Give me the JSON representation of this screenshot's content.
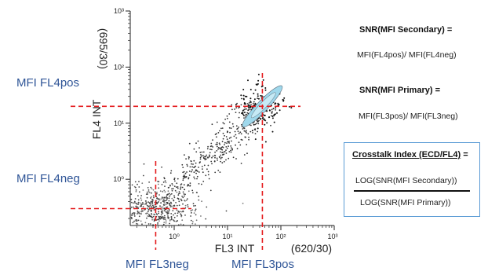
{
  "chart_data": {
    "type": "scatter",
    "xlabel": "FL3 INT",
    "ylabel": "FL4 INT",
    "x_filter": "(620/30)",
    "y_filter": "(695/30)",
    "xscale": "log",
    "yscale": "log",
    "xlim": [
      0.15,
      1000
    ],
    "ylim": [
      0.15,
      1000
    ],
    "x_ticks": [
      {
        "value": 1,
        "label": "10⁰"
      },
      {
        "value": 10,
        "label": "10¹"
      },
      {
        "value": 100,
        "label": "10²"
      },
      {
        "value": 1000,
        "label": "10³"
      }
    ],
    "y_ticks": [
      {
        "value": 1,
        "label": "10⁰"
      },
      {
        "value": 10,
        "label": "10¹"
      },
      {
        "value": 100,
        "label": "10²"
      },
      {
        "value": 1000,
        "label": "10³"
      }
    ],
    "grid": false,
    "populations": [
      {
        "description": "negative cluster",
        "center_x": 0.45,
        "center_y": 0.3
      },
      {
        "description": "positive cluster",
        "center_x": 45,
        "center_y": 20
      }
    ],
    "reference_lines": [
      {
        "axis": "x",
        "value": 0.45,
        "label": "MFI FL3neg"
      },
      {
        "axis": "x",
        "value": 45,
        "label": "MFI FL3pos"
      },
      {
        "axis": "y",
        "value": 0.3,
        "label": "MFI FL4neg"
      },
      {
        "axis": "y",
        "value": 20,
        "label": "MFI FL4pos"
      }
    ],
    "line_color": "#e41a1c",
    "annotation_color": "#2f5597",
    "cluster_color": "#9fd8ec"
  },
  "equations": {
    "snr_secondary_title": "SNR(MFI Secondary) =",
    "snr_secondary_formula": "MFI(FL4pos)/ MFI(FL4neg)",
    "snr_primary_title": "SNR(MFI Primary) =",
    "snr_primary_formula": "MFI(FL3pos)/ MFI(FL3neg)",
    "crosstalk_title": "Crosstalk Index (ECD/FL4)",
    "crosstalk_eq": " =",
    "crosstalk_numerator": "LOG(SNR(MFI Secondary))",
    "crosstalk_denominator": "LOG(SNR(MFI Primary))",
    "box_color": "#5b9bd5"
  }
}
